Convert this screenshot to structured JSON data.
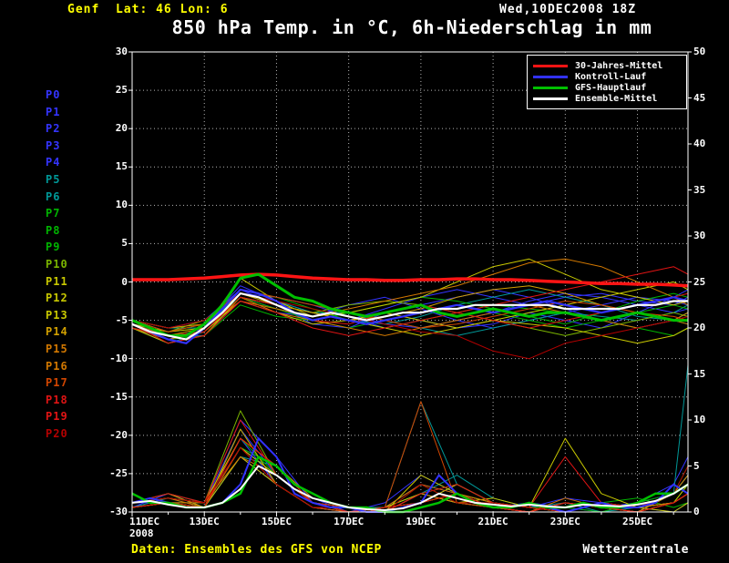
{
  "header": {
    "location": "Genf  Lat: 46 Lon: 6",
    "run_datetime": "Wed,10DEC2008 18Z"
  },
  "footer": {
    "source": "Daten: Ensembles des GFS von NCEP",
    "brand": "Wetterzentrale"
  },
  "legend": {
    "items": [
      {
        "label": "30-Jahres-Mittel",
        "color": "#ff1414"
      },
      {
        "label": "Kontroll-Lauf",
        "color": "#3232ff"
      },
      {
        "label": "GFS-Hauptlauf",
        "color": "#00c000"
      },
      {
        "label": "Ensemble-Mittel",
        "color": "#ffffff"
      }
    ]
  },
  "chart_data": {
    "type": "line",
    "title": "850 hPa Temp. in °C, 6h-Niederschlag in mm",
    "x_domain": [
      11,
      26.4
    ],
    "x_ticks": [
      {
        "x": 11,
        "label": "11DEC"
      },
      {
        "x": 13,
        "label": "13DEC"
      },
      {
        "x": 15,
        "label": "15DEC"
      },
      {
        "x": 17,
        "label": "17DEC"
      },
      {
        "x": 19,
        "label": "19DEC"
      },
      {
        "x": 21,
        "label": "21DEC"
      },
      {
        "x": 23,
        "label": "23DEC"
      },
      {
        "x": 25,
        "label": "25DEC"
      }
    ],
    "year_label": "2008",
    "y_left": {
      "min": -30,
      "max": 30,
      "step": 5,
      "unit": "°C"
    },
    "y_right": {
      "min": 0,
      "max": 50,
      "step": 5,
      "unit": "mm"
    },
    "x_main": [
      11,
      11.5,
      12,
      12.5,
      13,
      13.5,
      14,
      14.5,
      15,
      15.5,
      16,
      16.5,
      17,
      17.5,
      18,
      18.5,
      19,
      19.5,
      20,
      20.5,
      21,
      21.5,
      22,
      22.5,
      23,
      23.5,
      24,
      24.5,
      25,
      25.5,
      26,
      26.4
    ],
    "main_series": [
      {
        "id": "kontroll-lauf-precip",
        "name": "Kontroll-Lauf Niederschlag",
        "kind": "precip",
        "color": "#3232ff",
        "width": 2,
        "values": [
          1,
          1.5,
          1,
          0.5,
          0.5,
          1,
          3,
          8,
          6,
          2,
          1,
          0.5,
          0.5,
          0,
          0,
          0.5,
          1,
          4,
          2,
          1,
          0.5,
          0.5,
          1,
          0.5,
          0,
          0.5,
          1,
          0.5,
          0.5,
          1,
          3,
          2
        ]
      },
      {
        "id": "gfs-hauptlauf-precip",
        "name": "GFS-Hauptlauf Niederschlag",
        "kind": "precip",
        "color": "#00c000",
        "width": 2.5,
        "values": [
          2,
          1,
          1,
          0.5,
          0.5,
          1,
          2,
          6,
          5,
          3,
          2,
          1,
          0.5,
          0.5,
          0,
          0,
          0.5,
          1,
          2,
          1,
          0.5,
          0.5,
          1,
          0.5,
          0.5,
          1,
          0.5,
          0.5,
          1,
          2,
          2,
          3
        ]
      },
      {
        "id": "ensemble-mittel-precip",
        "name": "Ensemble-Mittel Niederschlag",
        "kind": "precip",
        "color": "#ffffff",
        "width": 2,
        "values": [
          1,
          1.2,
          0.8,
          0.5,
          0.5,
          1,
          2.5,
          5,
          4,
          2.5,
          1.5,
          1,
          0.5,
          0.3,
          0.2,
          0.4,
          1,
          2,
          1.5,
          1,
          0.8,
          0.6,
          0.8,
          0.6,
          0.5,
          0.8,
          0.7,
          0.6,
          0.8,
          1.2,
          2,
          3
        ]
      },
      {
        "id": "30-jahres-mittel",
        "name": "30-Jahres-Mittel",
        "kind": "temp",
        "color": "#ff1414",
        "width": 3.5,
        "values": [
          0.3,
          0.3,
          0.3,
          0.4,
          0.5,
          0.7,
          0.9,
          1.0,
          0.9,
          0.7,
          0.5,
          0.4,
          0.3,
          0.3,
          0.2,
          0.2,
          0.3,
          0.3,
          0.4,
          0.4,
          0.3,
          0.3,
          0.2,
          0.1,
          0.0,
          -0.1,
          -0.2,
          -0.2,
          -0.3,
          -0.3,
          -0.4,
          -0.5
        ]
      },
      {
        "id": "kontroll-lauf",
        "name": "Kontroll-Lauf",
        "kind": "temp",
        "color": "#3232ff",
        "width": 2.2,
        "values": [
          -5.5,
          -6.5,
          -7.5,
          -8,
          -6,
          -3.5,
          -1,
          -1.5,
          -2.5,
          -4,
          -5,
          -4.5,
          -5,
          -5.5,
          -5,
          -4.5,
          -4,
          -3.5,
          -3,
          -3.5,
          -4,
          -3.5,
          -3,
          -2.5,
          -3,
          -3.5,
          -4,
          -3.5,
          -3,
          -2.5,
          -2,
          -2.5
        ]
      },
      {
        "id": "gfs-hauptlauf",
        "name": "GFS-Hauptlauf",
        "kind": "temp",
        "color": "#00c000",
        "width": 3,
        "values": [
          -5,
          -6,
          -7,
          -7,
          -5.5,
          -3,
          0.5,
          1,
          -0.5,
          -2,
          -2.5,
          -3.5,
          -4,
          -4.5,
          -4,
          -3.5,
          -3,
          -4,
          -4.5,
          -4,
          -3.5,
          -4,
          -4.5,
          -4,
          -4,
          -4.5,
          -5,
          -4.5,
          -4,
          -4.5,
          -5,
          -5
        ]
      },
      {
        "id": "ensemble-mittel",
        "name": "Ensemble-Mittel",
        "kind": "temp",
        "color": "#ffffff",
        "width": 2.2,
        "values": [
          -5.5,
          -6.5,
          -7,
          -7.5,
          -6,
          -4,
          -1.5,
          -2,
          -3,
          -4,
          -4.5,
          -4,
          -4.5,
          -5,
          -4.5,
          -4,
          -4,
          -3.5,
          -3.5,
          -3,
          -3,
          -3,
          -3,
          -3,
          -3.5,
          -3.5,
          -3.5,
          -3.5,
          -3,
          -3,
          -2.5,
          -2.5
        ]
      }
    ],
    "x_members": [
      11,
      12,
      13,
      14,
      15,
      16,
      17,
      18,
      19,
      20,
      21,
      22,
      23,
      24,
      25,
      26,
      26.4
    ],
    "members": [
      {
        "label": "P0",
        "color": "#3434ff",
        "temp": [
          -5,
          -6.5,
          -5.5,
          -0.5,
          -2.5,
          -4,
          -5,
          -3.5,
          -2,
          -1,
          -2,
          -3,
          -2,
          -1.5,
          -2.5,
          -3,
          -2
        ],
        "precip": [
          1,
          2,
          0.5,
          6,
          3,
          0.5,
          0,
          0.5,
          2,
          1,
          0.5,
          0,
          1,
          0.5,
          0,
          2,
          4
        ]
      },
      {
        "label": "P1",
        "color": "#3434ff",
        "temp": [
          -5.5,
          -7,
          -6.5,
          -2,
          -3.5,
          -5,
          -4,
          -5.5,
          -6,
          -5,
          -4,
          -2.5,
          -1.5,
          -2,
          -3,
          -4,
          -3.5
        ],
        "precip": [
          0.5,
          1,
          1,
          9,
          4,
          1,
          0.5,
          0,
          1,
          3,
          1,
          0.5,
          0,
          1,
          0.5,
          1,
          2
        ]
      },
      {
        "label": "P2",
        "color": "#3434ff",
        "temp": [
          -6,
          -7.5,
          -6,
          -1.5,
          -2,
          -3,
          -4.5,
          -6,
          -5,
          -6,
          -5.5,
          -4,
          -5,
          -6,
          -4,
          -2,
          -1
        ],
        "precip": [
          1,
          1.5,
          0.5,
          7,
          5,
          1.5,
          0,
          0.5,
          3,
          2,
          1,
          0.5,
          1.5,
          1,
          0.5,
          0,
          1
        ]
      },
      {
        "label": "P3",
        "color": "#3434ff",
        "temp": [
          -5,
          -6,
          -5,
          -1,
          -3,
          -5.5,
          -6,
          -4,
          -3,
          -2,
          -1,
          -2,
          -3.5,
          -5,
          -6,
          -5,
          -4
        ],
        "precip": [
          0.5,
          2,
          1,
          10,
          6,
          1,
          0.5,
          0,
          2,
          1,
          0.5,
          1,
          0.5,
          0,
          1,
          2,
          3
        ]
      },
      {
        "label": "P4",
        "color": "#3434ff",
        "temp": [
          -5.5,
          -7,
          -7,
          -2.5,
          -4,
          -4.5,
          -3,
          -2,
          -3.5,
          -5,
          -6,
          -5,
          -4,
          -3,
          -2,
          -2.5,
          -3
        ],
        "precip": [
          1,
          1,
          0.5,
          8,
          3,
          0.5,
          0,
          1,
          4,
          2,
          0.5,
          0,
          1,
          0.5,
          1,
          3,
          6
        ]
      },
      {
        "label": "P5",
        "color": "#009898",
        "temp": [
          -6,
          -8,
          -6.5,
          -2,
          -3,
          -4,
          -5,
          -5.5,
          -4.5,
          -3,
          -2,
          -1,
          -2,
          -3,
          -4.5,
          -5,
          -5.5
        ],
        "precip": [
          0.5,
          1.5,
          1,
          7,
          4,
          1,
          0.5,
          0.5,
          12,
          3,
          1,
          0.5,
          0,
          1,
          0.5,
          2,
          16
        ]
      },
      {
        "label": "P6",
        "color": "#009898",
        "temp": [
          -5,
          -6,
          -6,
          -1.5,
          -2.5,
          -4,
          -4,
          -5,
          -6,
          -7,
          -6,
          -5,
          -4,
          -4.5,
          -5,
          -4,
          -3
        ],
        "precip": [
          1,
          2,
          0.5,
          6,
          5,
          1.5,
          0.5,
          0,
          2,
          4,
          1.5,
          0.5,
          1,
          0,
          0.5,
          1,
          2
        ]
      },
      {
        "label": "P7",
        "color": "#00b400",
        "temp": [
          -5.5,
          -7.5,
          -7,
          -3,
          -4.5,
          -5,
          -4,
          -3,
          -2,
          -2.5,
          -3.5,
          -4.5,
          -5.5,
          -4,
          -2.5,
          -1.5,
          -2
        ],
        "precip": [
          0.5,
          1,
          1,
          8,
          4,
          1,
          0,
          0.5,
          1,
          2,
          1,
          0.5,
          0,
          1,
          1.5,
          0.5,
          1
        ]
      },
      {
        "label": "P8",
        "color": "#00b400",
        "temp": [
          -5,
          -6.5,
          -5.5,
          -1,
          -2,
          -3.5,
          -5,
          -6,
          -5,
          -4,
          -3,
          -3.5,
          -4,
          -5,
          -6,
          -7,
          -6
        ],
        "precip": [
          1,
          1.5,
          0.5,
          9,
          3,
          0.5,
          0.5,
          0,
          3,
          1,
          0.5,
          0,
          1,
          0.5,
          0,
          1,
          3
        ]
      },
      {
        "label": "P9",
        "color": "#00b400",
        "temp": [
          -6,
          -7,
          -6,
          -2,
          -3.5,
          -5,
          -6,
          -5,
          -4,
          -3,
          -4,
          -5,
          -6,
          -5,
          -4,
          -3,
          -3.5
        ],
        "precip": [
          0.5,
          1,
          0.5,
          7,
          5,
          1,
          0,
          0.5,
          2,
          3,
          1,
          0.5,
          0.5,
          0,
          1,
          2,
          5
        ]
      },
      {
        "label": "P10",
        "color": "#7ab400",
        "temp": [
          -5.5,
          -6.5,
          -5,
          -1.5,
          -3,
          -4,
          -3,
          -2.5,
          -3,
          -4,
          -5,
          -6,
          -7,
          -6,
          -5,
          -4,
          -4.5
        ],
        "precip": [
          1,
          2,
          1,
          11,
          4,
          1,
          0.5,
          0,
          1,
          2,
          0.5,
          0,
          1,
          0.5,
          0,
          1,
          2
        ]
      },
      {
        "label": "P11",
        "color": "#c8c800",
        "temp": [
          -5,
          -7,
          -6.5,
          -2.5,
          -4,
          -5.5,
          -5,
          -4,
          -5,
          -6,
          -5,
          -4,
          -3,
          -2,
          -1,
          0,
          -1
        ],
        "precip": [
          0.5,
          1,
          0.5,
          6,
          3,
          0.5,
          0,
          0.5,
          2,
          1,
          1.5,
          0.5,
          0,
          1,
          0.5,
          0,
          1
        ]
      },
      {
        "label": "P12",
        "color": "#c8c800",
        "temp": [
          -6,
          -8,
          -7,
          -2,
          -3,
          -4,
          -5,
          -6,
          -7,
          -6,
          -5,
          -5.5,
          -6,
          -7,
          -8,
          -7,
          -6
        ],
        "precip": [
          1,
          1.5,
          1,
          8,
          5,
          1,
          0.5,
          0,
          4,
          2,
          1,
          0.5,
          8,
          2,
          0.5,
          1,
          2
        ]
      },
      {
        "label": "P13",
        "color": "#c8c800",
        "temp": [
          -5.5,
          -6.5,
          -6,
          0.5,
          -2.5,
          -4.5,
          -4,
          -3,
          -2,
          0,
          2,
          3,
          1,
          -1,
          -2,
          -3,
          -2.5
        ],
        "precip": [
          0.5,
          1,
          0.5,
          7,
          4,
          1,
          0,
          0.5,
          1,
          3,
          1,
          0.5,
          0,
          1,
          0.5,
          1,
          3
        ]
      },
      {
        "label": "P14",
        "color": "#d2a000",
        "temp": [
          -5,
          -6,
          -5.5,
          -1.5,
          -3,
          -4,
          -5,
          -4.5,
          -3.5,
          -2,
          -1,
          -0.5,
          -1.5,
          -3,
          -4,
          -5,
          -4
        ],
        "precip": [
          1,
          2,
          0.5,
          9,
          3,
          0.5,
          0.5,
          0,
          2,
          1,
          0.5,
          0,
          1,
          0.5,
          0,
          2,
          4
        ]
      },
      {
        "label": "P15",
        "color": "#d27800",
        "temp": [
          -6,
          -7.5,
          -6.5,
          -2,
          -4,
          -5,
          -6,
          -7,
          -6,
          -5,
          -4,
          -3,
          -4,
          -5,
          -6,
          -5,
          -5.5
        ],
        "precip": [
          0.5,
          1,
          1,
          6,
          4,
          1,
          0,
          0.5,
          3,
          2,
          1,
          0.5,
          0,
          1,
          0.5,
          1,
          2
        ]
      },
      {
        "label": "P16",
        "color": "#d27800",
        "temp": [
          -5.5,
          -7,
          -6,
          -2.5,
          -3.5,
          -4.5,
          -3.5,
          -2.5,
          -1.5,
          -0.5,
          1,
          2.5,
          3,
          2,
          0,
          -2,
          -3
        ],
        "precip": [
          1,
          1.5,
          0.5,
          8,
          5,
          1.5,
          0.5,
          0,
          1,
          2,
          0.5,
          0,
          1.5,
          0.5,
          0,
          1,
          2
        ]
      },
      {
        "label": "P17",
        "color": "#d24600",
        "temp": [
          -5,
          -6.5,
          -5.5,
          -1,
          -2,
          -3,
          -4,
          -5,
          -6,
          -5.5,
          -4.5,
          -3.5,
          -2.5,
          -3,
          -4,
          -4.5,
          -5
        ],
        "precip": [
          0.5,
          1,
          0.5,
          7,
          3,
          0.5,
          0,
          0.5,
          12,
          1,
          0.5,
          0,
          1,
          0.5,
          0,
          1,
          2
        ]
      },
      {
        "label": "P18",
        "color": "#e01414",
        "temp": [
          -6,
          -7,
          -6.5,
          -2,
          -3,
          -5,
          -5.5,
          -4,
          -3,
          -4,
          -5,
          -6,
          -5,
          -4,
          -3,
          -2,
          -1.5
        ],
        "precip": [
          1,
          2,
          1,
          10,
          4,
          1,
          0.5,
          0,
          2,
          3,
          1,
          0.5,
          6,
          1,
          0.5,
          2,
          3
        ]
      },
      {
        "label": "P19",
        "color": "#e01414",
        "temp": [
          -5.5,
          -8,
          -7,
          -2.5,
          -4,
          -6,
          -7,
          -6,
          -5,
          -4,
          -3,
          -2,
          -1,
          0,
          1,
          2,
          1
        ],
        "precip": [
          0.5,
          1,
          0.5,
          8,
          5,
          1,
          0,
          0.5,
          1,
          2,
          0.5,
          0,
          1,
          0.5,
          0,
          1,
          2
        ]
      },
      {
        "label": "P20",
        "color": "#b40000",
        "temp": [
          -5,
          -6,
          -5,
          -1.5,
          -2.5,
          -3.5,
          -4.5,
          -5.5,
          -6.5,
          -7,
          -9,
          -10,
          -8,
          -7,
          -6,
          -5,
          -4.5
        ],
        "precip": [
          1,
          1.5,
          1,
          7,
          3,
          0.5,
          0.5,
          0,
          3,
          1,
          1,
          0.5,
          0,
          1,
          0.5,
          2,
          5
        ]
      }
    ]
  }
}
